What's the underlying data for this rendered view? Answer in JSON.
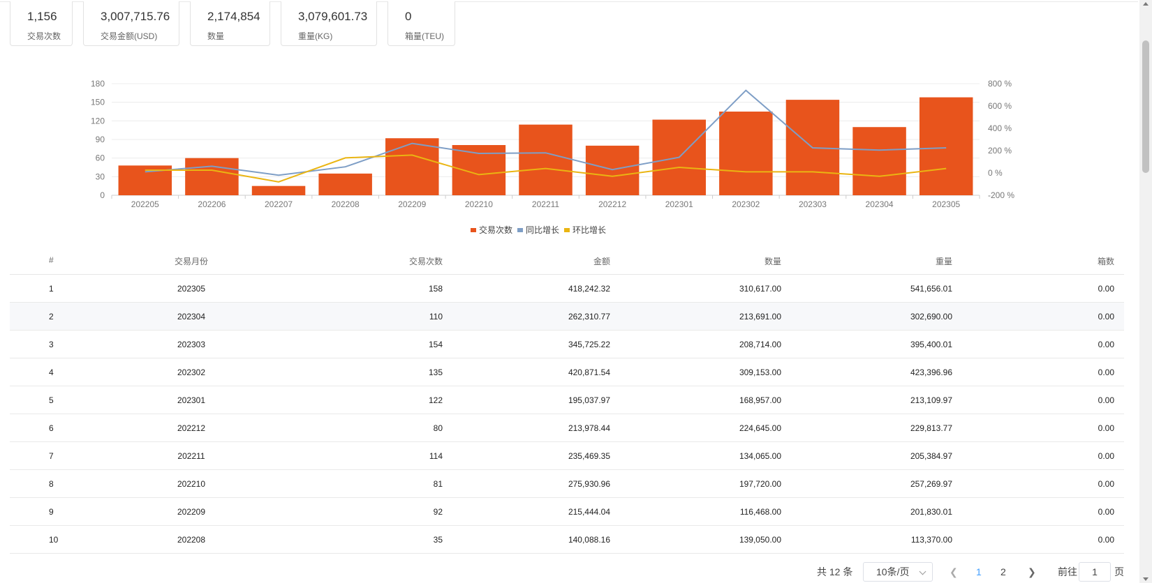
{
  "stats": [
    {
      "value": "1,156",
      "label": "交易次数"
    },
    {
      "value": "3,007,715.76",
      "label": "交易金额(USD)"
    },
    {
      "value": "2,174,854",
      "label": "数量"
    },
    {
      "value": "3,079,601.73",
      "label": "重量(KG)"
    },
    {
      "value": "0",
      "label": "箱量(TEU)"
    }
  ],
  "chart_data": {
    "type": "bar",
    "categories": [
      "202205",
      "202206",
      "202207",
      "202208",
      "202209",
      "202210",
      "202211",
      "202212",
      "202301",
      "202302",
      "202303",
      "202304",
      "202305"
    ],
    "y_left": {
      "min": 0,
      "max": 180,
      "ticks": [
        "0",
        "30",
        "60",
        "90",
        "120",
        "150",
        "180"
      ]
    },
    "y_right": {
      "min": -200,
      "max": 800,
      "ticks": [
        "-200 %",
        "0 %",
        "200 %",
        "400 %",
        "600 %",
        "800 %"
      ]
    },
    "series": [
      {
        "name": "交易次数",
        "type": "bar",
        "axis": "left",
        "color": "#e8541c",
        "values": [
          48,
          60,
          15,
          35,
          92,
          81,
          114,
          80,
          122,
          135,
          154,
          110,
          158
        ]
      },
      {
        "name": "同比增长",
        "type": "line",
        "axis": "right",
        "color": "#7e9ec6",
        "values": [
          10,
          60,
          -20,
          55,
          265,
          175,
          180,
          30,
          140,
          740,
          225,
          205,
          225
        ]
      },
      {
        "name": "环比增长",
        "type": "line",
        "axis": "right",
        "color": "#eab512",
        "values": [
          25,
          25,
          -80,
          135,
          160,
          -15,
          40,
          -30,
          50,
          10,
          10,
          -30,
          40
        ]
      }
    ],
    "legend_position": "bottom-center",
    "grid": true
  },
  "table": {
    "headers": [
      "#",
      "交易月份",
      "交易次数",
      "金额",
      "数量",
      "重量",
      "箱数"
    ],
    "rows": [
      [
        "1",
        "202305",
        "158",
        "418,242.32",
        "310,617.00",
        "541,656.01",
        "0.00"
      ],
      [
        "2",
        "202304",
        "110",
        "262,310.77",
        "213,691.00",
        "302,690.00",
        "0.00"
      ],
      [
        "3",
        "202303",
        "154",
        "345,725.22",
        "208,714.00",
        "395,400.01",
        "0.00"
      ],
      [
        "4",
        "202302",
        "135",
        "420,871.54",
        "309,153.00",
        "423,396.96",
        "0.00"
      ],
      [
        "5",
        "202301",
        "122",
        "195,037.97",
        "168,957.00",
        "213,109.97",
        "0.00"
      ],
      [
        "6",
        "202212",
        "80",
        "213,978.44",
        "224,645.00",
        "229,813.77",
        "0.00"
      ],
      [
        "7",
        "202211",
        "114",
        "235,469.35",
        "134,065.00",
        "205,384.97",
        "0.00"
      ],
      [
        "8",
        "202210",
        "81",
        "275,930.96",
        "197,720.00",
        "257,269.97",
        "0.00"
      ],
      [
        "9",
        "202209",
        "92",
        "215,444.04",
        "116,468.00",
        "201,830.01",
        "0.00"
      ],
      [
        "10",
        "202208",
        "35",
        "140,088.16",
        "139,050.00",
        "113,370.00",
        "0.00"
      ]
    ]
  },
  "pagination": {
    "total": "共 12 条",
    "page_size": "10条/页",
    "prev_icon": "chevron-left-icon",
    "next_icon": "chevron-right-icon",
    "pages": [
      "1",
      "2"
    ],
    "current_page": "1",
    "goto_prefix": "前往",
    "goto_value": "1",
    "goto_suffix": "页"
  }
}
